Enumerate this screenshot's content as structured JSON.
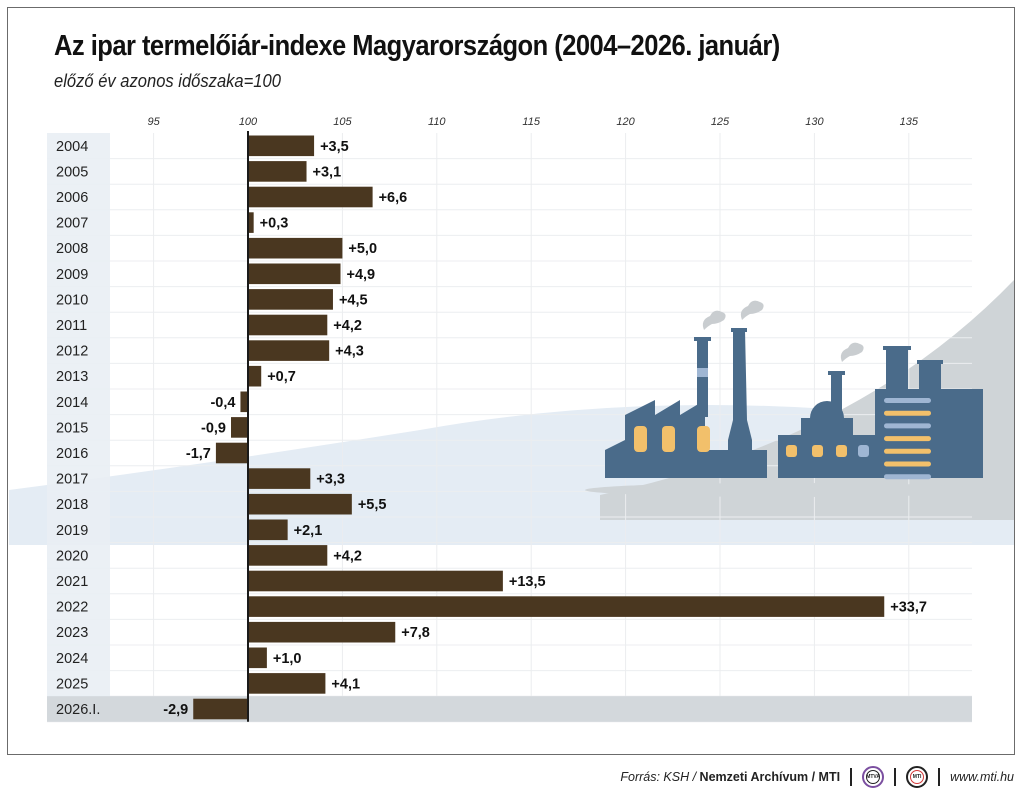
{
  "header": {
    "title": "Az ipar termelőiár-indexe Magyarországon (2004–2026. január)",
    "subtitle": "előző év azonos időszaka=100"
  },
  "footer": {
    "source_prefix": "Forrás: KSH / ",
    "source_bold": "Nemzeti Archívum / MTI",
    "logo1_text": "MTVA",
    "logo2_text": "MTI",
    "url": "www.mti.hu"
  },
  "colors": {
    "bar": "#4a3720",
    "axis": "#1a1a1a",
    "label_column": "#e9eef4",
    "highlight_row": "#d3d8dc",
    "factory": "#4a6b8a",
    "factory_window": "#f2c06b",
    "factory_accent": "#9fb6d3",
    "smoke": "#c9cdd0",
    "hill": "#cfd4d7",
    "band": "#e4ecf4"
  },
  "chart_data": {
    "type": "bar",
    "orientation": "horizontal",
    "title": "Az ipar termelőiár-indexe Magyarországon (2004–2026. január)",
    "subtitle": "előző év azonos időszaka=100",
    "xlabel": "",
    "ylabel": "",
    "baseline": 100,
    "xlim": [
      92,
      138
    ],
    "xticks": [
      95,
      100,
      105,
      110,
      115,
      120,
      125,
      130,
      135
    ],
    "grid": true,
    "legend": "none",
    "categories": [
      "2004",
      "2005",
      "2006",
      "2007",
      "2008",
      "2009",
      "2010",
      "2011",
      "2012",
      "2013",
      "2014",
      "2015",
      "2016",
      "2017",
      "2018",
      "2019",
      "2020",
      "2021",
      "2022",
      "2023",
      "2024",
      "2025",
      "2026.I."
    ],
    "values": [
      3.5,
      3.1,
      6.6,
      0.3,
      5.0,
      4.9,
      4.5,
      4.2,
      4.3,
      0.7,
      -0.4,
      -0.9,
      -1.7,
      3.3,
      5.5,
      2.1,
      4.2,
      13.5,
      33.7,
      7.8,
      1.0,
      4.1,
      -2.9
    ],
    "value_labels": [
      "+3,5",
      "+3,1",
      "+6,6",
      "+0,3",
      "+5,0",
      "+4,9",
      "+4,5",
      "+4,2",
      "+4,3",
      "+0,7",
      "-0,4",
      "-0,9",
      "-1,7",
      "+3,3",
      "+5,5",
      "+2,1",
      "+4,2",
      "+13,5",
      "+33,7",
      "+7,8",
      "+1,0",
      "+4,1",
      "-2,9"
    ],
    "highlighted_category": "2026.I."
  }
}
